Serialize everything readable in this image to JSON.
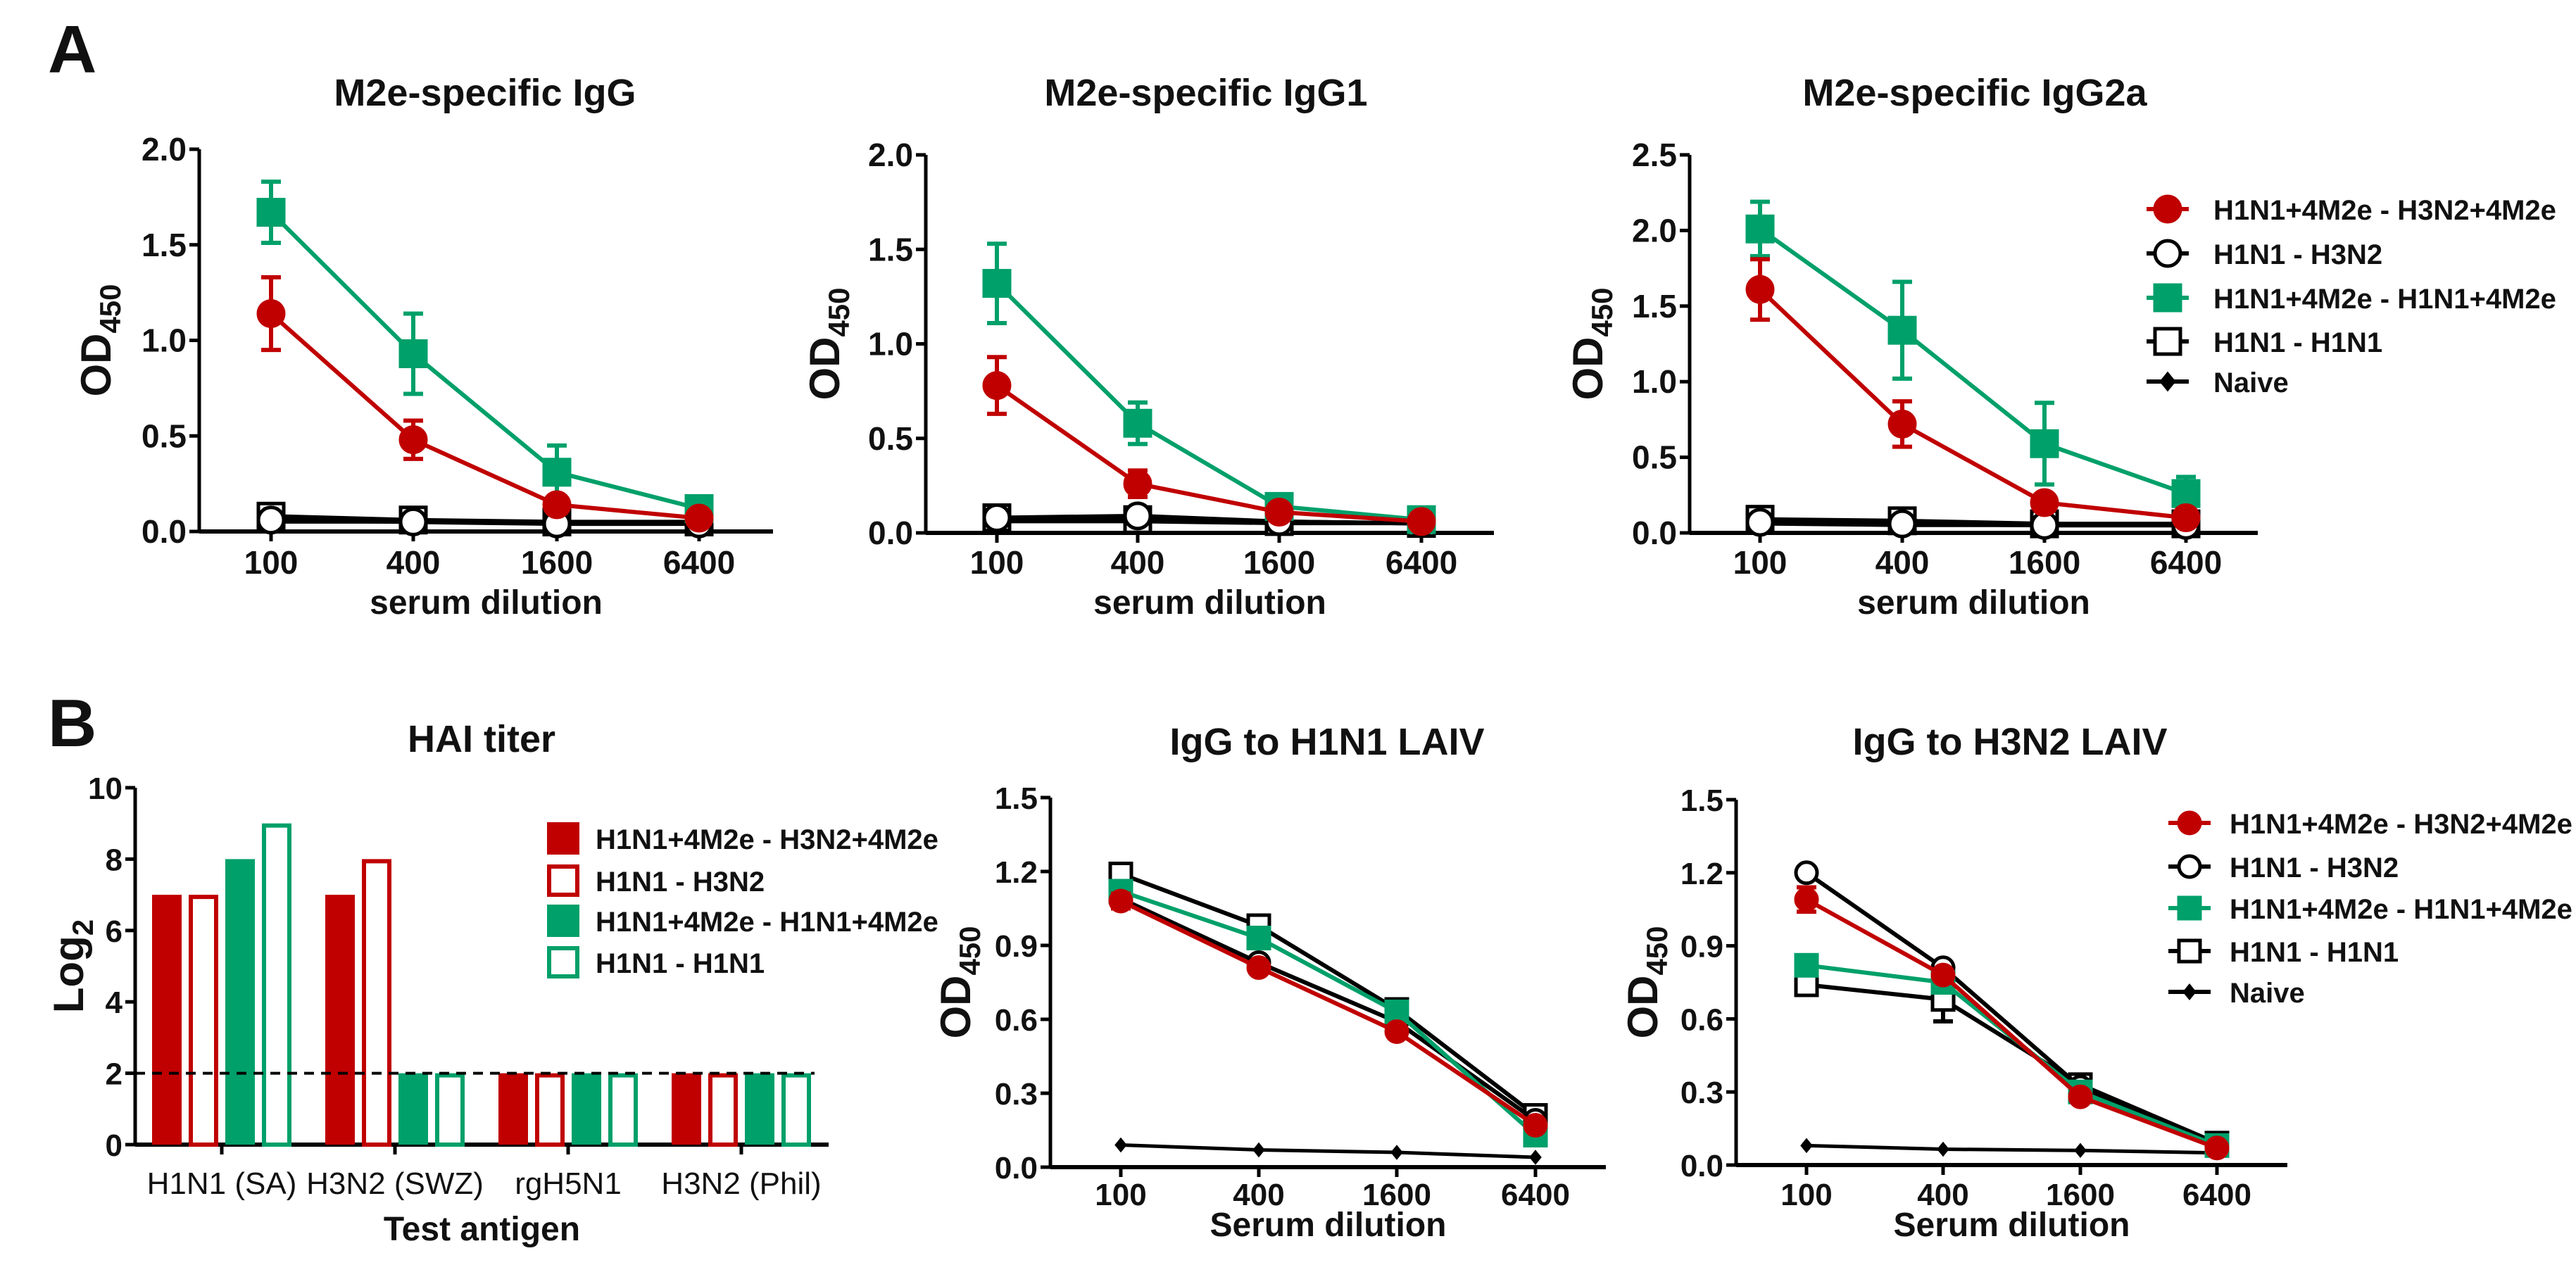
{
  "panels": {
    "a": "A",
    "b": "B"
  },
  "colors": {
    "red": "#C00000",
    "green": "#00A06A",
    "black": "#000000",
    "white": "#FFFFFF"
  },
  "series_legend": [
    {
      "name": "H1N1+4M2e - H3N2+4M2e",
      "marker": "filled-circle",
      "color": "#C00000"
    },
    {
      "name": "H1N1 - H3N2",
      "marker": "open-circle",
      "color": "#000000"
    },
    {
      "name": "H1N1+4M2e - H1N1+4M2e",
      "marker": "filled-square",
      "color": "#00A06A"
    },
    {
      "name": "H1N1 - H1N1",
      "marker": "open-square",
      "color": "#000000"
    },
    {
      "name": "Naive",
      "marker": "diamond",
      "color": "#000000"
    }
  ],
  "chart_data": [
    {
      "id": "a1",
      "type": "line",
      "title": "M2e-specific IgG",
      "xlabel": "serum dilution",
      "ylabel": "OD",
      "ylabel_sub": "450",
      "categories": [
        "100",
        "400",
        "1600",
        "6400"
      ],
      "ylim": [
        0,
        2.0
      ],
      "yticks": [
        "0.0",
        "0.5",
        "1.0",
        "1.5",
        "2.0"
      ],
      "ystep": 0.5,
      "series": [
        {
          "name": "H1N1+4M2e - H3N2+4M2e",
          "values": [
            1.14,
            0.48,
            0.14,
            0.07
          ],
          "err": [
            0.19,
            0.1,
            0.03,
            0
          ]
        },
        {
          "name": "H1N1 - H3N2",
          "values": [
            0.06,
            0.05,
            0.04,
            0.04
          ],
          "err": [
            0,
            0,
            0,
            0
          ]
        },
        {
          "name": "H1N1+4M2e - H1N1+4M2e",
          "values": [
            1.67,
            0.93,
            0.31,
            0.12
          ],
          "err": [
            0.16,
            0.21,
            0.14,
            0
          ]
        },
        {
          "name": "H1N1 - H1N1",
          "values": [
            0.08,
            0.06,
            0.05,
            0.05
          ],
          "err": [
            0,
            0,
            0,
            0
          ]
        },
        {
          "name": "Naive",
          "values": [
            0.05,
            0.05,
            0.04,
            0.04
          ],
          "err": [
            0,
            0,
            0,
            0
          ]
        }
      ]
    },
    {
      "id": "a2",
      "type": "line",
      "title": "M2e-specific IgG1",
      "xlabel": "serum dilution",
      "ylabel": "OD",
      "ylabel_sub": "450",
      "categories": [
        "100",
        "400",
        "1600",
        "6400"
      ],
      "ylim": [
        0,
        2.0
      ],
      "yticks": [
        "0.0",
        "0.5",
        "1.0",
        "1.5",
        "2.0"
      ],
      "ystep": 0.5,
      "series": [
        {
          "name": "H1N1+4M2e - H3N2+4M2e",
          "values": [
            0.78,
            0.26,
            0.11,
            0.06
          ],
          "err": [
            0.15,
            0.07,
            0,
            0
          ]
        },
        {
          "name": "H1N1 - H3N2",
          "values": [
            0.08,
            0.09,
            0.06,
            0.05
          ],
          "err": [
            0,
            0,
            0,
            0
          ]
        },
        {
          "name": "H1N1+4M2e - H1N1+4M2e",
          "values": [
            1.32,
            0.58,
            0.14,
            0.07
          ],
          "err": [
            0.21,
            0.11,
            0,
            0
          ]
        },
        {
          "name": "H1N1 - H1N1",
          "values": [
            0.08,
            0.07,
            0.06,
            0.05
          ],
          "err": [
            0,
            0,
            0,
            0
          ]
        },
        {
          "name": "Naive",
          "values": [
            0.06,
            0.06,
            0.05,
            0.05
          ],
          "err": [
            0,
            0,
            0,
            0
          ]
        }
      ]
    },
    {
      "id": "a3",
      "type": "line",
      "title": "M2e-specific IgG2a",
      "xlabel": "serum dilution",
      "ylabel": "OD",
      "ylabel_sub": "450",
      "categories": [
        "100",
        "400",
        "1600",
        "6400"
      ],
      "ylim": [
        0,
        2.5
      ],
      "yticks": [
        "0.0",
        "0.5",
        "1.0",
        "1.5",
        "2.0",
        "2.5"
      ],
      "ystep": 0.5,
      "legend": "right",
      "series": [
        {
          "name": "H1N1+4M2e - H3N2+4M2e",
          "values": [
            1.61,
            0.72,
            0.2,
            0.1
          ],
          "err": [
            0.2,
            0.15,
            0,
            0
          ]
        },
        {
          "name": "H1N1 - H3N2",
          "values": [
            0.07,
            0.06,
            0.05,
            0.05
          ],
          "err": [
            0,
            0,
            0,
            0
          ]
        },
        {
          "name": "H1N1+4M2e - H1N1+4M2e",
          "values": [
            2.01,
            1.34,
            0.59,
            0.26
          ],
          "err": [
            0.18,
            0.32,
            0.27,
            0.11
          ]
        },
        {
          "name": "H1N1 - H1N1",
          "values": [
            0.09,
            0.08,
            0.06,
            0.06
          ],
          "err": [
            0,
            0,
            0,
            0
          ]
        },
        {
          "name": "Naive",
          "values": [
            0.06,
            0.05,
            0.05,
            0.05
          ],
          "err": [
            0,
            0,
            0,
            0
          ]
        }
      ]
    },
    {
      "id": "b1",
      "type": "bar",
      "title": "HAI titer",
      "xlabel": "Test antigen",
      "ylabel": "Log",
      "ylabel_sub": "2",
      "categories": [
        "H1N1 (SA)",
        "H3N2 (SWZ)",
        "rgH5N1",
        "H3N2 (Phil)"
      ],
      "ylim": [
        0,
        10
      ],
      "yticks": [
        "0",
        "2",
        "4",
        "6",
        "8",
        "10"
      ],
      "ystep": 2,
      "reference_line": 2,
      "legend": "right",
      "series": [
        {
          "name": "H1N1+4M2e - H3N2+4M2e",
          "style": "filled",
          "color": "#C00000",
          "values": [
            7,
            7,
            2,
            2
          ]
        },
        {
          "name": "H1N1 - H3N2",
          "style": "open",
          "color": "#C00000",
          "values": [
            7,
            8,
            2,
            2
          ]
        },
        {
          "name": "H1N1+4M2e - H1N1+4M2e",
          "style": "filled",
          "color": "#00A06A",
          "values": [
            8,
            2,
            2,
            2
          ]
        },
        {
          "name": "H1N1 - H1N1",
          "style": "open",
          "color": "#00A06A",
          "values": [
            9,
            2,
            2,
            2
          ]
        }
      ]
    },
    {
      "id": "b2",
      "type": "line",
      "title": "IgG to H1N1 LAIV",
      "xlabel": "Serum dilution",
      "ylabel": "OD",
      "ylabel_sub": "450",
      "categories": [
        "100",
        "400",
        "1600",
        "6400"
      ],
      "ylim": [
        0,
        1.5
      ],
      "yticks": [
        "0.0",
        "0.3",
        "0.6",
        "0.9",
        "1.2",
        "1.5"
      ],
      "ystep": 0.3,
      "series": [
        {
          "name": "H1N1+4M2e - H3N2+4M2e",
          "values": [
            1.08,
            0.81,
            0.55,
            0.17
          ],
          "err": [
            0.03,
            0,
            0,
            0
          ]
        },
        {
          "name": "H1N1 - H3N2",
          "values": [
            1.09,
            0.83,
            0.59,
            0.19
          ],
          "err": [
            0,
            0,
            0,
            0
          ]
        },
        {
          "name": "H1N1+4M2e - H1N1+4M2e",
          "values": [
            1.12,
            0.93,
            0.63,
            0.13
          ],
          "err": [
            0,
            0,
            0,
            0
          ]
        },
        {
          "name": "H1N1 - H1N1",
          "values": [
            1.19,
            0.98,
            0.64,
            0.21
          ],
          "err": [
            0,
            0,
            0,
            0
          ]
        },
        {
          "name": "Naive",
          "values": [
            0.09,
            0.07,
            0.06,
            0.04
          ],
          "err": [
            0,
            0,
            0,
            0
          ]
        }
      ]
    },
    {
      "id": "b3",
      "type": "line",
      "title": "IgG to H3N2 LAIV",
      "xlabel": "Serum dilution",
      "ylabel": "OD",
      "ylabel_sub": "450",
      "categories": [
        "100",
        "400",
        "1600",
        "6400"
      ],
      "ylim": [
        0,
        1.5
      ],
      "yticks": [
        "0.0",
        "0.3",
        "0.6",
        "0.9",
        "1.2",
        "1.5"
      ],
      "ystep": 0.3,
      "legend": "right",
      "series": [
        {
          "name": "H1N1+4M2e - H3N2+4M2e",
          "values": [
            1.09,
            0.78,
            0.28,
            0.07
          ],
          "err": [
            0.05,
            0,
            0,
            0
          ]
        },
        {
          "name": "H1N1 - H3N2",
          "values": [
            1.2,
            0.81,
            0.32,
            0.08
          ],
          "err": [
            0,
            0,
            0,
            0
          ]
        },
        {
          "name": "H1N1+4M2e - H1N1+4M2e",
          "values": [
            0.82,
            0.75,
            0.3,
            0.08
          ],
          "err": [
            0,
            0.03,
            0,
            0
          ]
        },
        {
          "name": "H1N1 - H1N1",
          "values": [
            0.74,
            0.68,
            0.33,
            0.09
          ],
          "err": [
            0,
            0.09,
            0,
            0
          ]
        },
        {
          "name": "Naive",
          "values": [
            0.08,
            0.065,
            0.06,
            0.05
          ],
          "err": [
            0,
            0,
            0,
            0
          ]
        }
      ]
    }
  ]
}
